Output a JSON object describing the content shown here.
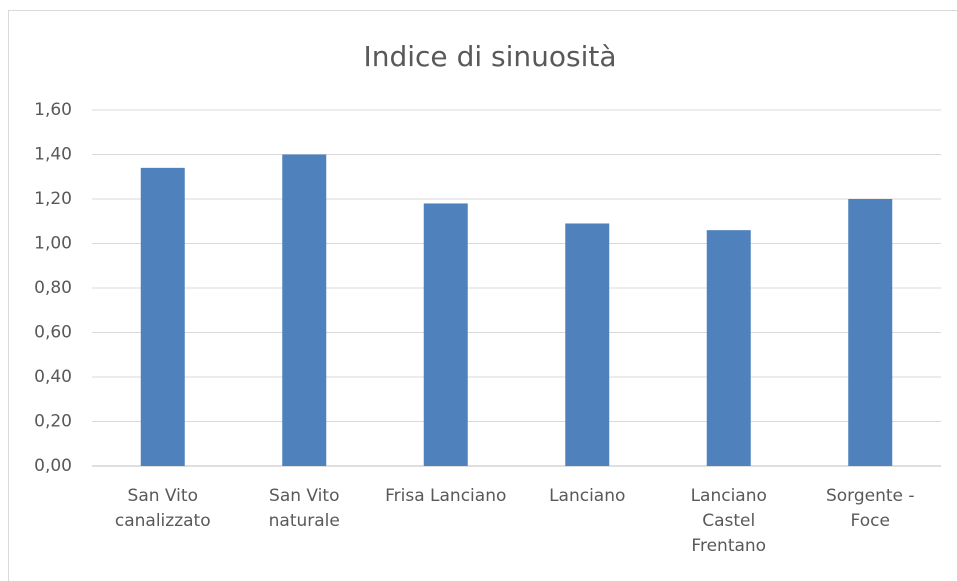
{
  "chart_data": {
    "type": "bar",
    "title": "Indice di sinuosità",
    "categories": [
      "San Vito\ncanalizzato",
      "San Vito\nnaturale",
      "Frisa Lanciano",
      "Lanciano",
      "Lanciano\nCastel\nFrentano",
      "Sorgente -\nFoce"
    ],
    "values": [
      1.34,
      1.4,
      1.18,
      1.09,
      1.06,
      1.2
    ],
    "color": "#4f81bd",
    "ylim": [
      0,
      1.6
    ],
    "yticks": [
      {
        "value": 0,
        "label": "0,00"
      },
      {
        "value": 0.2,
        "label": "0,20"
      },
      {
        "value": 0.4,
        "label": "0,40"
      },
      {
        "value": 0.6,
        "label": "0,60"
      },
      {
        "value": 0.8,
        "label": "0,80"
      },
      {
        "value": 1.0,
        "label": "1,00"
      },
      {
        "value": 1.2,
        "label": "1,20"
      },
      {
        "value": 1.4,
        "label": "1,40"
      },
      {
        "value": 1.6,
        "label": "1,60"
      }
    ],
    "grid": true
  }
}
